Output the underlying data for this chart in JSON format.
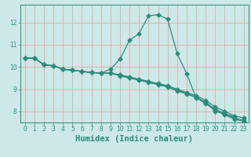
{
  "title": "",
  "xlabel": "Humidex (Indice chaleur)",
  "bg_color": "#cce8e8",
  "grid_major_color": "#ddaaaa",
  "grid_minor_color": "#cce8e8",
  "line_color": "#2e8b7a",
  "xlim": [
    -0.5,
    23.5
  ],
  "ylim": [
    7.5,
    12.8
  ],
  "yticks": [
    8,
    9,
    10,
    11,
    12
  ],
  "xticks": [
    0,
    1,
    2,
    3,
    4,
    5,
    6,
    7,
    8,
    9,
    10,
    11,
    12,
    13,
    14,
    15,
    16,
    17,
    18,
    19,
    20,
    21,
    22,
    23
  ],
  "lines": [
    {
      "x": [
        0,
        1,
        2,
        3,
        4,
        5,
        6,
        7,
        8,
        9,
        10,
        11,
        12,
        13,
        14,
        15,
        16,
        17,
        18,
        19,
        20,
        21,
        22
      ],
      "y": [
        10.4,
        10.4,
        10.1,
        10.05,
        9.9,
        9.85,
        9.8,
        9.75,
        9.72,
        9.9,
        10.35,
        11.2,
        11.5,
        12.3,
        12.35,
        12.15,
        10.6,
        9.7,
        8.6,
        8.4,
        8.0,
        7.9,
        7.75
      ]
    },
    {
      "x": [
        0,
        1,
        2,
        3,
        4,
        5,
        6,
        7,
        8,
        9,
        10,
        11,
        12,
        13,
        14,
        15,
        16,
        17,
        18,
        19,
        20,
        21,
        22,
        23
      ],
      "y": [
        10.4,
        10.4,
        10.1,
        10.05,
        9.9,
        9.85,
        9.8,
        9.75,
        9.72,
        9.72,
        9.65,
        9.55,
        9.45,
        9.35,
        9.25,
        9.15,
        9.0,
        8.85,
        8.7,
        8.5,
        8.2,
        8.0,
        7.8,
        7.7
      ]
    },
    {
      "x": [
        0,
        1,
        2,
        3,
        4,
        5,
        6,
        7,
        8,
        9,
        10,
        11,
        12,
        13,
        14,
        15,
        16,
        17,
        18,
        19,
        20,
        21,
        22,
        23
      ],
      "y": [
        10.4,
        10.4,
        10.1,
        10.05,
        9.9,
        9.85,
        9.8,
        9.75,
        9.72,
        9.72,
        9.62,
        9.52,
        9.42,
        9.32,
        9.22,
        9.12,
        8.95,
        8.8,
        8.65,
        8.4,
        8.1,
        7.9,
        7.7,
        7.6
      ]
    },
    {
      "x": [
        0,
        1,
        2,
        3,
        4,
        5,
        6,
        7,
        8,
        9,
        10,
        11,
        12,
        13,
        14,
        15,
        16,
        17,
        18,
        19,
        20,
        21,
        22,
        23
      ],
      "y": [
        10.4,
        10.4,
        10.1,
        10.05,
        9.9,
        9.85,
        9.8,
        9.75,
        9.72,
        9.72,
        9.6,
        9.5,
        9.4,
        9.3,
        9.2,
        9.1,
        8.92,
        8.78,
        8.62,
        8.35,
        8.05,
        7.85,
        7.65,
        7.55
      ]
    }
  ],
  "marker_size": 2.5,
  "line_width": 0.9,
  "tick_fontsize": 5.5,
  "xlabel_fontsize": 7.5,
  "tick_color": "#2e8b7a",
  "spine_color": "#2e8b7a"
}
